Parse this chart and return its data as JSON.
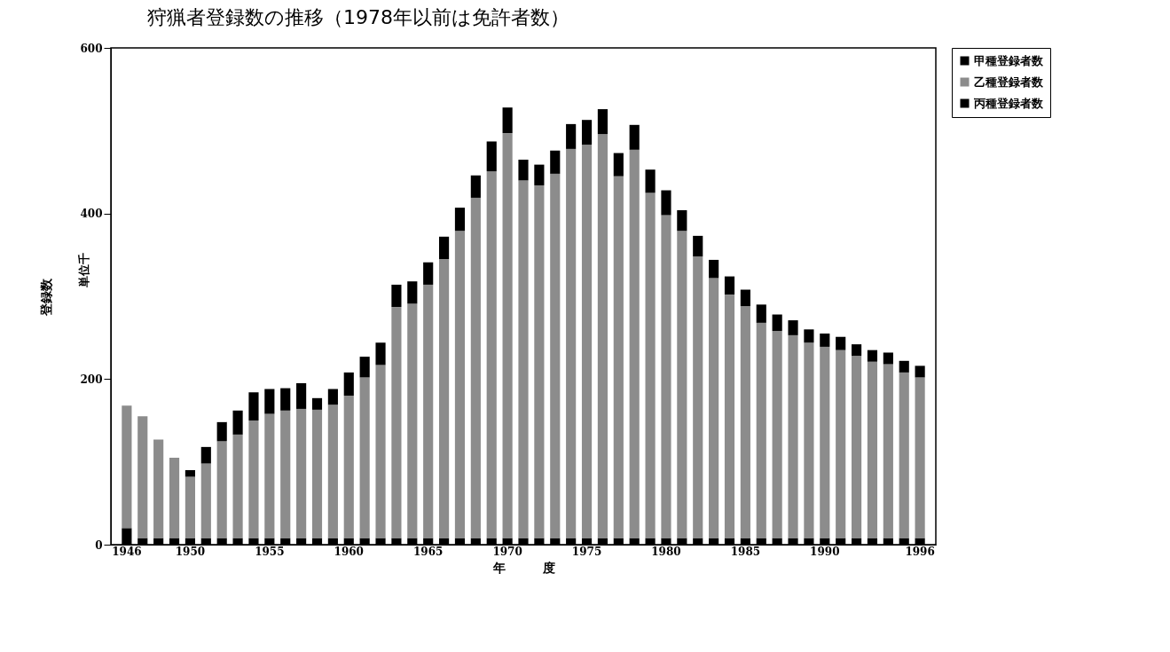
{
  "chart_data": {
    "type": "bar",
    "stacked": true,
    "title": "狩猟者登録数の推移（1978年以前は免許者数）",
    "xlabel": "年　　　度",
    "ylabel": "登録数",
    "annotations": [
      "単位千"
    ],
    "categories": [
      "1946",
      null,
      null,
      null,
      "1950",
      null,
      null,
      null,
      null,
      "1955",
      null,
      null,
      null,
      null,
      "1960",
      null,
      null,
      null,
      null,
      "1965",
      null,
      null,
      null,
      null,
      "1970",
      null,
      null,
      null,
      null,
      "1975",
      null,
      null,
      null,
      null,
      "1980",
      null,
      null,
      null,
      null,
      "1985",
      null,
      null,
      null,
      null,
      "1990",
      null,
      null,
      null,
      null,
      null,
      "1996"
    ],
    "series": [
      {
        "name": "丙種登録者数",
        "color": "#000000",
        "values": [
          20,
          8,
          8,
          8,
          8,
          8,
          8,
          8,
          8,
          8,
          8,
          8,
          8,
          8,
          8,
          8,
          8,
          8,
          8,
          8,
          8,
          8,
          8,
          8,
          8,
          8,
          8,
          8,
          8,
          8,
          8,
          8,
          8,
          8,
          8,
          8,
          8,
          8,
          8,
          8,
          8,
          8,
          8,
          8,
          8,
          8,
          8,
          8,
          8,
          8,
          8
        ]
      },
      {
        "name": "乙種登録者数",
        "color": "#8c8c8c",
        "values": [
          148,
          147,
          119,
          97,
          74,
          90,
          117,
          125,
          142,
          150,
          154,
          156,
          155,
          161,
          172,
          194,
          209,
          279,
          283,
          306,
          337,
          371,
          411,
          443,
          489,
          432,
          426,
          440,
          470,
          475,
          488,
          437,
          469,
          417,
          390,
          371,
          340,
          314,
          294,
          280,
          260,
          250,
          245,
          236,
          231,
          227,
          220,
          213,
          210,
          200,
          194
        ]
      },
      {
        "name": "甲種登録者数",
        "color": "#000000",
        "values": [
          0,
          0,
          0,
          0,
          8,
          20,
          23,
          29,
          34,
          30,
          27,
          31,
          14,
          19,
          28,
          25,
          27,
          27,
          27,
          27,
          27,
          28,
          27,
          36,
          31,
          25,
          25,
          28,
          30,
          30,
          30,
          28,
          30,
          28,
          30,
          25,
          25,
          22,
          22,
          20,
          22,
          20,
          18,
          16,
          16,
          16,
          14,
          14,
          14,
          14,
          14
        ]
      }
    ],
    "ylim": [
      0,
      600
    ],
    "yticks": [
      0,
      200,
      400,
      600
    ],
    "grid": false,
    "legend": "right"
  }
}
